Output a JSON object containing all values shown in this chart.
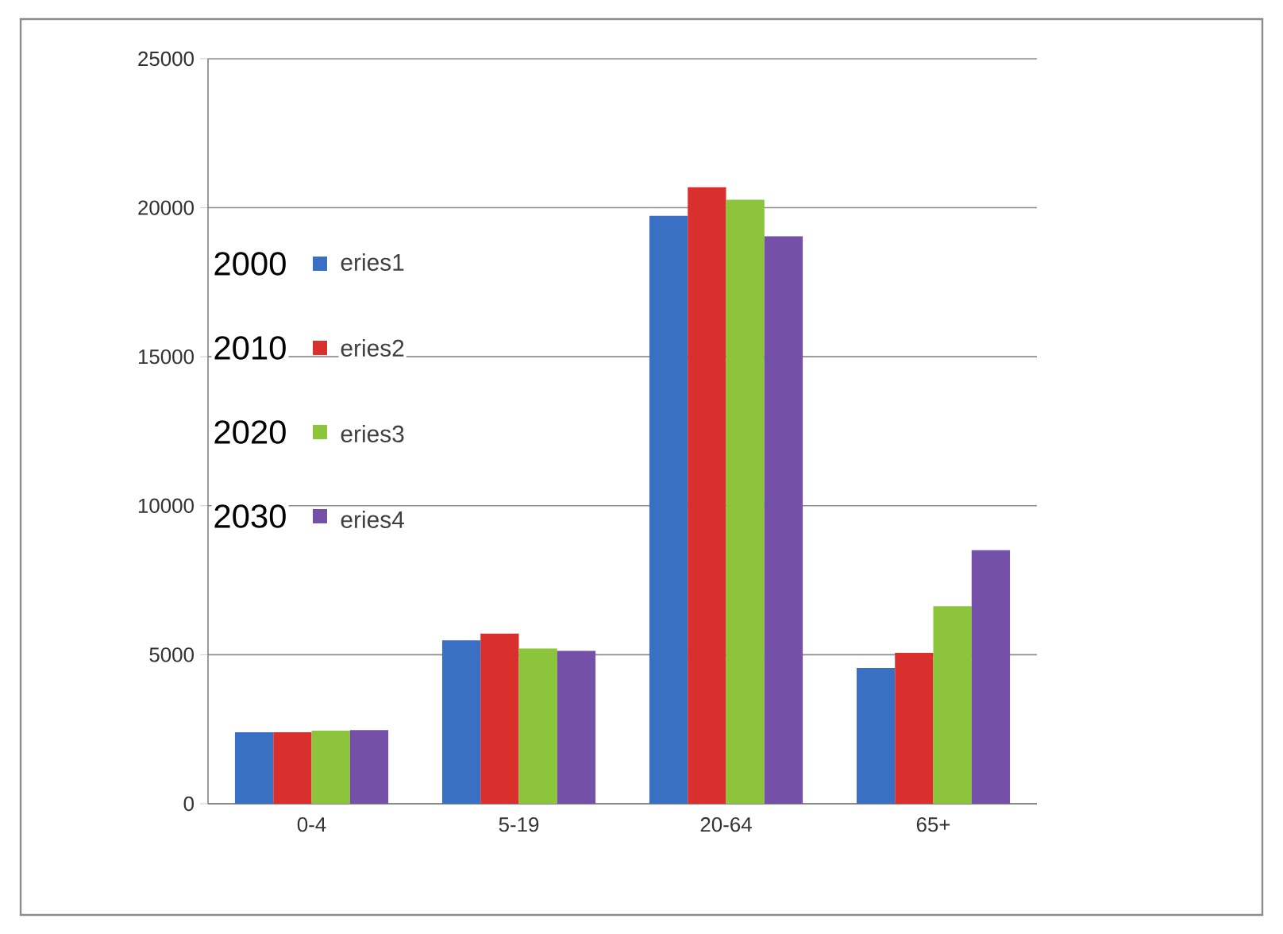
{
  "chart_data": {
    "type": "bar",
    "categories": [
      "0-4",
      "5-19",
      "20-64",
      "65+"
    ],
    "series": [
      {
        "name": "2000",
        "color": "#3a70c4",
        "values": [
          2400,
          5480,
          19730,
          4560
        ]
      },
      {
        "name": "2010",
        "color": "#d9302e",
        "values": [
          2400,
          5710,
          20690,
          5060
        ]
      },
      {
        "name": "2020",
        "color": "#8cc43c",
        "values": [
          2450,
          5210,
          20270,
          6630
        ]
      },
      {
        "name": "2030",
        "color": "#7550a8",
        "values": [
          2470,
          5130,
          19040,
          8510
        ]
      }
    ],
    "ylim": [
      0,
      25000
    ],
    "yticks": [
      0,
      5000,
      10000,
      15000,
      20000,
      25000
    ],
    "grid": "y",
    "legend": "left",
    "annotations": [
      "eries1",
      "eries2",
      "eries3",
      "eries4"
    ]
  }
}
